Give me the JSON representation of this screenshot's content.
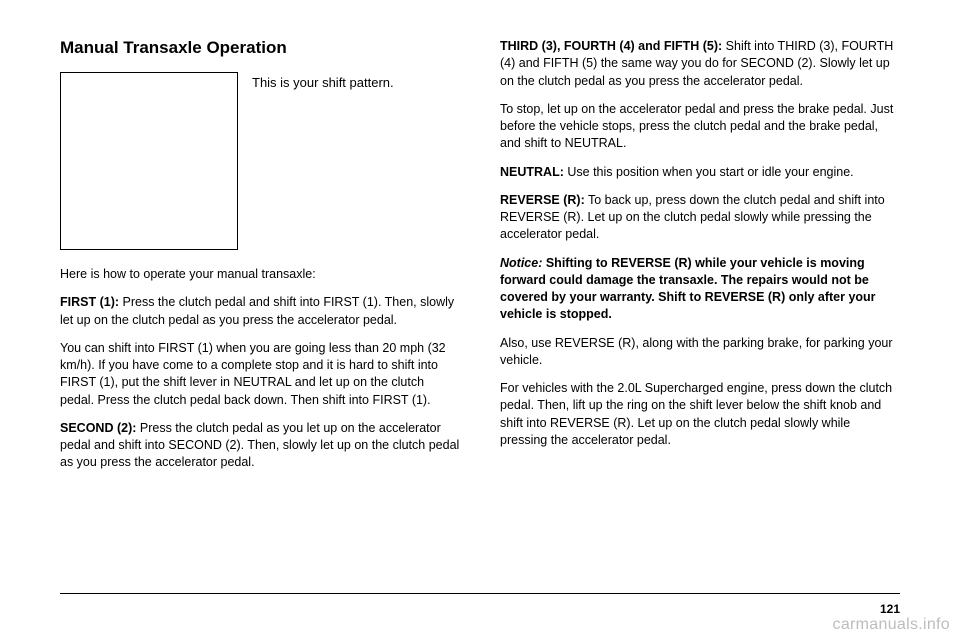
{
  "left": {
    "heading": "Manual Transaxle Operation",
    "caption": "This is your shift pattern.",
    "p1": "Here is how to operate your manual transaxle:",
    "p2a": "FIRST (1):",
    "p2b": "  Press the clutch pedal and shift into FIRST (1). Then, slowly let up on the clutch pedal as you press the accelerator pedal.",
    "p3": "You can shift into FIRST (1) when you are going less than 20 mph (32 km/h). If you have come to a complete stop and it is hard to shift into FIRST (1), put the shift lever in NEUTRAL and let up on the clutch pedal. Press the clutch pedal back down. Then shift into FIRST (1).",
    "p4a": "SECOND (2):",
    "p4b": "  Press the clutch pedal as you let up on the accelerator pedal and shift into SECOND (2). Then, slowly let up on the clutch pedal as you press the accelerator pedal."
  },
  "right": {
    "p1a": "THIRD (3), FOURTH (4) and FIFTH (5):",
    "p1b": "  Shift into THIRD (3), FOURTH (4) and FIFTH (5) the same way you do for SECOND (2). Slowly let up on the clutch pedal as you press the accelerator pedal.",
    "p2": "To stop, let up on the accelerator pedal and press the brake pedal. Just before the vehicle stops, press the clutch pedal and the brake pedal, and shift to NEUTRAL.",
    "p3a": "NEUTRAL:",
    "p3b": "  Use this position when you start or idle your engine.",
    "p4a": "REVERSE (R):",
    "p4b": "  To back up, press down the clutch pedal and shift into REVERSE (R). Let up on the clutch pedal slowly while pressing the accelerator pedal.",
    "p5a": "Notice:",
    "p5b": "  Shifting to REVERSE (R) while your vehicle is moving forward could damage the transaxle. The repairs would not be covered by your warranty. Shift to REVERSE (R) only after your vehicle is stopped.",
    "p6": "Also, use REVERSE (R), along with the parking brake, for parking your vehicle.",
    "p7": "For vehicles with the 2.0L Supercharged engine, press down the clutch pedal. Then, lift up the ring on the shift lever below the shift knob and shift into REVERSE (R). Let up on the clutch pedal slowly while pressing the accelerator pedal."
  },
  "pageNum": "121",
  "watermark": "carmanuals.info"
}
